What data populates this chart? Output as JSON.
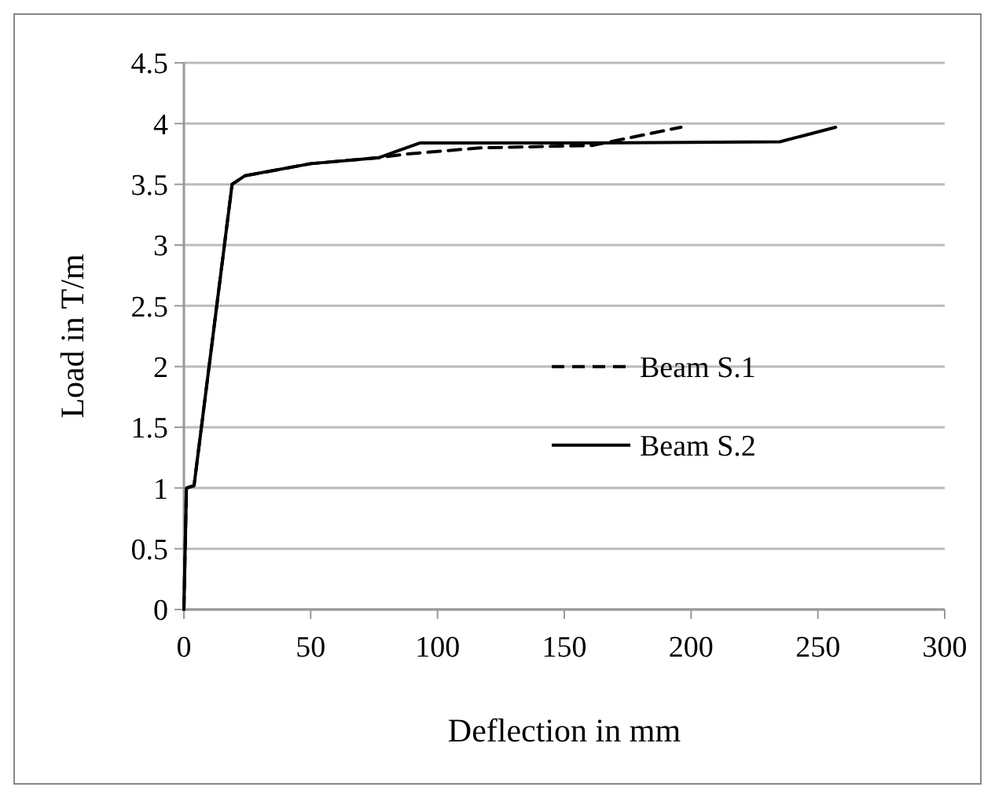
{
  "chart_data": {
    "type": "line",
    "xlabel": "Deflection in mm",
    "ylabel": "Load in T/m",
    "xlim": [
      0,
      300
    ],
    "ylim": [
      0,
      4.5
    ],
    "xticks": [
      0,
      50,
      100,
      150,
      200,
      250,
      300
    ],
    "yticks": [
      0,
      0.5,
      1,
      1.5,
      2,
      2.5,
      3,
      3.5,
      4,
      4.5
    ],
    "grid": "y",
    "legend": "right",
    "series": [
      {
        "name": "Beam S.1",
        "color": "#000000",
        "line_style": "dashed",
        "x": [
          0,
          1,
          4,
          19,
          24,
          50,
          77,
          88,
          117,
          161,
          196
        ],
        "values": [
          0,
          1,
          1.02,
          3.5,
          3.57,
          3.67,
          3.72,
          3.75,
          3.8,
          3.82,
          3.97
        ]
      },
      {
        "name": "Beam S.2",
        "color": "#000000",
        "line_style": "solid",
        "x": [
          0,
          1,
          4,
          19,
          24,
          50,
          77,
          93,
          160,
          235,
          257
        ],
        "values": [
          0,
          1,
          1.02,
          3.5,
          3.57,
          3.67,
          3.72,
          3.84,
          3.84,
          3.85,
          3.97
        ]
      }
    ]
  }
}
